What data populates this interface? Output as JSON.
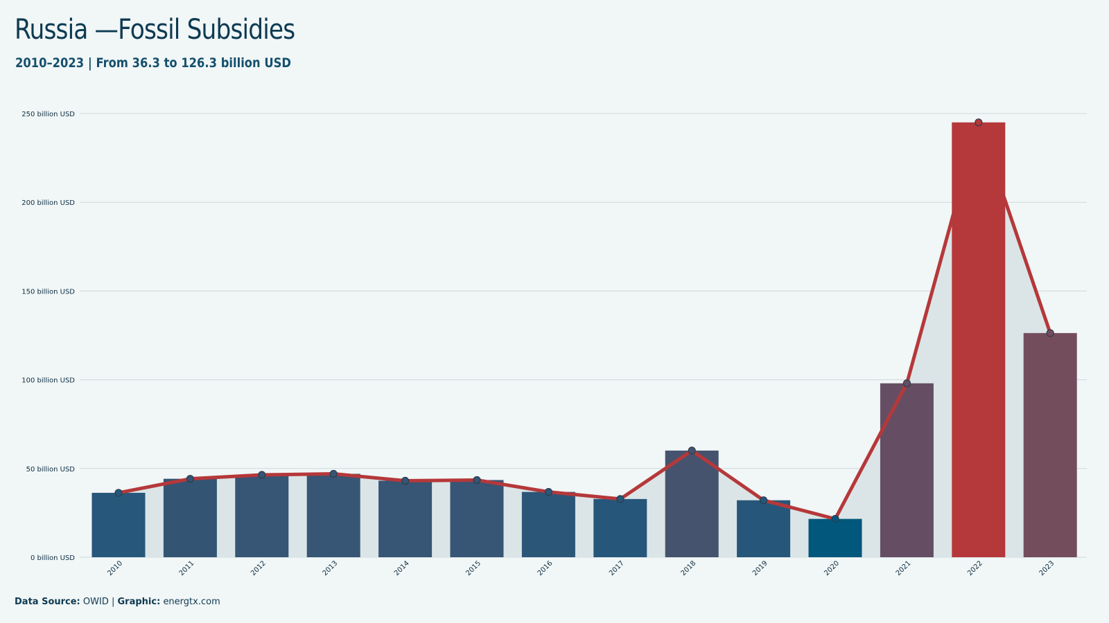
{
  "header": {
    "title": "Russia —Fossil Subsidies",
    "subtitle": "2010–2023 | From 36.3 to 126.3 billion USD"
  },
  "footer": {
    "source_label": "Data Source:",
    "source_value": "OWID",
    "separator": "|",
    "graphic_label": "Graphic:",
    "graphic_value": "energtx.com"
  },
  "colors": {
    "background": "#f1f6f6",
    "area": "#dbe5e7",
    "line": "#b5383a",
    "highlight_bar": "#b5383a",
    "marker_stroke": "#2a3d4d",
    "grid": "#cdd9dd"
  },
  "chart_data": {
    "type": "bar",
    "title": "Russia —Fossil Subsidies",
    "subtitle": "2010–2023 | From 36.3 to 126.3 billion USD",
    "xlabel": "",
    "ylabel": "",
    "unit": "billion USD",
    "ylim": [
      0,
      250
    ],
    "yticks": [
      0,
      50,
      100,
      150,
      200,
      250
    ],
    "ytick_labels": [
      "0 billion USD",
      "50 billion USD",
      "100 billion USD",
      "150 billion USD",
      "200 billion USD",
      "250 billion USD"
    ],
    "grid": true,
    "legend": "none",
    "overlay": "line-with-markers-and-area",
    "categories": [
      "2010",
      "2011",
      "2012",
      "2013",
      "2014",
      "2015",
      "2016",
      "2017",
      "2018",
      "2019",
      "2020",
      "2021",
      "2022",
      "2023"
    ],
    "values": [
      36.3,
      44.2,
      46.4,
      47.0,
      43.1,
      43.5,
      36.8,
      32.8,
      60.1,
      32.1,
      21.6,
      98.0,
      245.0,
      126.3
    ],
    "bar_colors": [
      "#27577a",
      "#345474",
      "#375574",
      "#375574",
      "#375574",
      "#375574",
      "#2c5678",
      "#26577a",
      "#46536e",
      "#26577a",
      "#02577c",
      "#654e64",
      "#b5383a",
      "#744d5d"
    ]
  }
}
